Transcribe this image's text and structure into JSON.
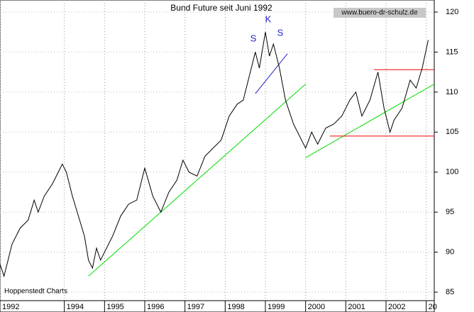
{
  "chart_data": {
    "type": "line",
    "title": "Bund Future seit Juni 1992",
    "watermark": "www.buero-dr-schulz.de",
    "source": "Hoppenstedt Charts",
    "annotations": [
      "S",
      "K",
      "S"
    ],
    "x": [
      1992.4,
      1992.5,
      1992.6,
      1992.7,
      1992.9,
      1993.1,
      1993.25,
      1993.35,
      1993.5,
      1993.7,
      1993.85,
      1993.95,
      1994.05,
      1994.2,
      1994.35,
      1994.5,
      1994.6,
      1994.7,
      1994.8,
      1994.9,
      1995.0,
      1995.2,
      1995.4,
      1995.6,
      1995.8,
      1996.0,
      1996.2,
      1996.4,
      1996.6,
      1996.8,
      1996.95,
      1997.1,
      1997.3,
      1997.5,
      1997.7,
      1997.9,
      1998.1,
      1998.3,
      1998.45,
      1998.6,
      1998.75,
      1998.85,
      1999.0,
      1999.1,
      1999.2,
      1999.35,
      1999.5,
      1999.7,
      1999.9,
      2000.0,
      2000.15,
      2000.3,
      2000.5,
      2000.7,
      2000.9,
      2001.1,
      2001.25,
      2001.4,
      2001.6,
      2001.8,
      2001.95,
      2002.1,
      2002.2,
      2002.4,
      2002.6,
      2002.75,
      2002.9,
      2003.05
    ],
    "series": [
      {
        "name": "Bund Future",
        "color": "#000000",
        "values": [
          88.5,
          87,
          89,
          91,
          93,
          94,
          96.5,
          95,
          97,
          98.5,
          100,
          101,
          100,
          97,
          94.5,
          92,
          89,
          88,
          90.5,
          89,
          90,
          92,
          94.5,
          96,
          96.5,
          100.5,
          97,
          95,
          97.5,
          99,
          101.5,
          100,
          99.5,
          102,
          103,
          104,
          107,
          108.5,
          109,
          112,
          115,
          113,
          117.5,
          114.5,
          116,
          113,
          109,
          106,
          104,
          103,
          105,
          103.5,
          105.5,
          106,
          107,
          109,
          110,
          107,
          109,
          112.5,
          108,
          105,
          106.5,
          108,
          111.5,
          110.5,
          113,
          116.5
        ]
      }
    ],
    "trend_lines": [
      {
        "color": "#00dd00",
        "x": [
          1994.6,
          2000.0
        ],
        "y": [
          87,
          111
        ]
      },
      {
        "color": "#00dd00",
        "x": [
          2000.0,
          2003.2
        ],
        "y": [
          101.8,
          111
        ]
      },
      {
        "color": "#2222cc",
        "x": [
          1998.75,
          1999.55
        ],
        "y": [
          109.8,
          114.8
        ]
      },
      {
        "color": "#ee0000",
        "x": [
          2001.7,
          2003.2
        ],
        "y": [
          112.8,
          112.8
        ]
      },
      {
        "color": "#ee0000",
        "x": [
          2000.6,
          2003.2
        ],
        "y": [
          104.5,
          104.5
        ]
      }
    ],
    "xlim": [
      1992.4,
      2003.2
    ],
    "xticks": [
      {
        "value": 1992.4,
        "label": "1992"
      },
      1994,
      1995,
      1996,
      1997,
      1998,
      1999,
      2000,
      2001,
      2002,
      {
        "value": 2003,
        "label": "20"
      }
    ],
    "ylim": [
      85,
      120
    ],
    "yticks": [
      85,
      90,
      95,
      100,
      105,
      110,
      115,
      120
    ],
    "grid": true
  }
}
